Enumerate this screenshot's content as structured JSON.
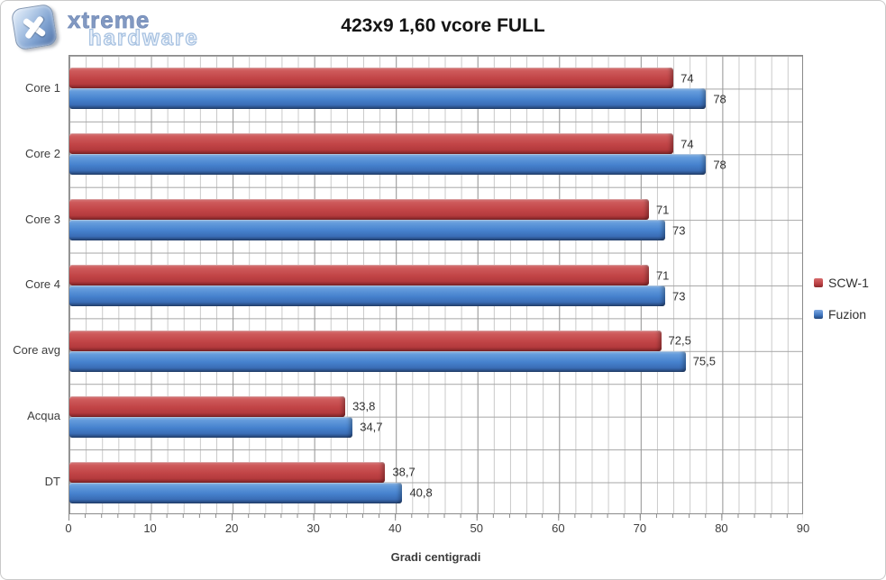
{
  "logo": {
    "icon": "xtreme-hardware-logo",
    "line1": "xtreme",
    "line2": "hardware"
  },
  "title": "423x9 1,60 vcore FULL",
  "chart_data": {
    "type": "bar",
    "orientation": "horizontal",
    "title": "423x9 1,60 vcore FULL",
    "categories": [
      "Core 1",
      "Core 2",
      "Core 3",
      "Core 4",
      "Core avg",
      "Acqua",
      "DT"
    ],
    "series": [
      {
        "name": "SCW-1",
        "color": "#C0504D",
        "values": [
          74,
          74,
          71,
          71,
          72.5,
          33.8,
          38.7
        ],
        "value_labels": [
          "74",
          "74",
          "71",
          "71",
          "72,5",
          "33,8",
          "38,7"
        ]
      },
      {
        "name": "Fuzion",
        "color": "#4F81BD",
        "values": [
          78,
          78,
          73,
          73,
          75.5,
          34.7,
          40.8
        ],
        "value_labels": [
          "78",
          "78",
          "73",
          "73",
          "75,5",
          "34,7",
          "40,8"
        ]
      }
    ],
    "xlabel": "Gradi centigradi",
    "xlim": [
      0,
      90
    ],
    "x_major_ticks": [
      0,
      10,
      20,
      30,
      40,
      50,
      60,
      70,
      80,
      90
    ],
    "x_minor_step": 2,
    "grid": true,
    "legend_position": "right",
    "decimal_separator": ","
  }
}
